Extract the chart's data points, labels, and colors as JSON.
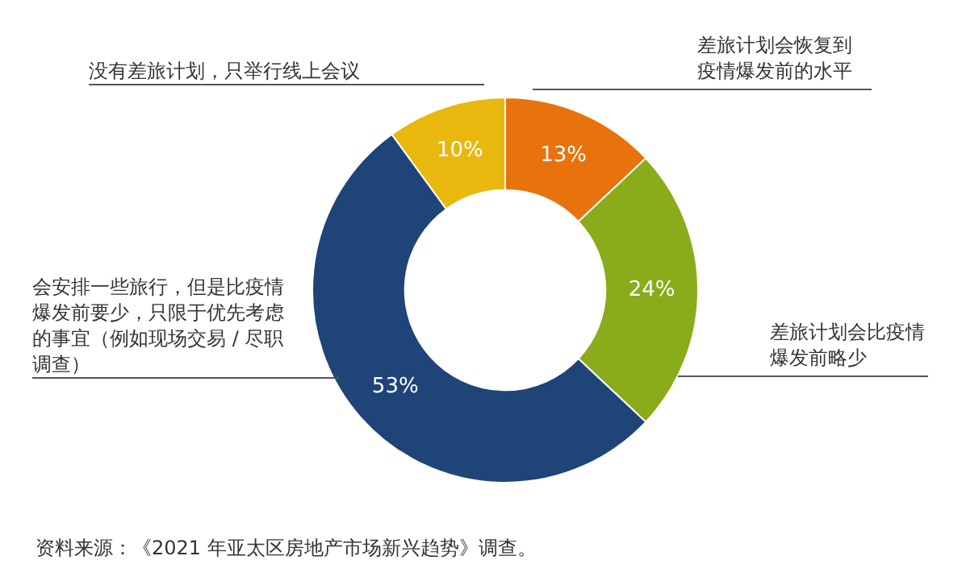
{
  "chart_data": {
    "type": "donut",
    "categories": [
      "差旅计划会恢复到疫情爆发前的水平",
      "差旅计划会比疫情爆发前略少",
      "会安排一些旅行，但是比疫情爆发前要少，只限于优先考虑的事宜（例如现场交易 / 尽职调查）",
      "没有差旅计划，只举行线上会议"
    ],
    "values": [
      13,
      24,
      53,
      10
    ],
    "colors": [
      "#e8720c",
      "#8aab1a",
      "#1f4477",
      "#e8b80f"
    ],
    "value_labels": [
      "13%",
      "24%",
      "53%",
      "10%"
    ],
    "legend": false,
    "annotations": [
      "资料来源：《2021 年亚太区房地产市场新兴趋势》调查。"
    ]
  }
}
